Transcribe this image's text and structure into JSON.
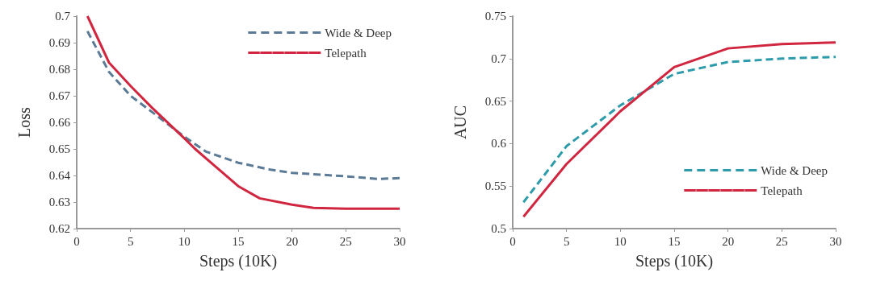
{
  "chart_data": [
    {
      "type": "line",
      "xlabel": "Steps (10K)",
      "ylabel": "Loss",
      "xlim": [
        0,
        30
      ],
      "xticks": [
        0,
        5,
        10,
        15,
        20,
        25,
        30
      ],
      "ylim": [
        0.62,
        0.7
      ],
      "yticks": [
        0.62,
        0.63,
        0.64,
        0.65,
        0.66,
        0.67,
        0.68,
        0.69,
        0.7
      ],
      "grid": false,
      "legend": "top right",
      "series": [
        {
          "name": "Wide & Deep",
          "color": "#5b7a96",
          "line_style": "dashed",
          "x": [
            1,
            3,
            5,
            7,
            10,
            12,
            15,
            18,
            20,
            25,
            28,
            30
          ],
          "values": [
            0.6943,
            0.679,
            0.67,
            0.6639,
            0.6546,
            0.649,
            0.6448,
            0.6422,
            0.641,
            0.6397,
            0.6387,
            0.639
          ]
        },
        {
          "name": "Telepath",
          "color": "#d0263f",
          "line_style": "solid",
          "x": [
            1,
            3,
            5,
            7,
            10,
            11,
            15,
            17,
            20,
            22,
            25,
            30
          ],
          "values": [
            0.7,
            0.6825,
            0.6737,
            0.6655,
            0.654,
            0.65,
            0.636,
            0.6314,
            0.629,
            0.6278,
            0.6275,
            0.6275
          ]
        }
      ]
    },
    {
      "type": "line",
      "xlabel": "Steps (10K)",
      "ylabel": "AUC",
      "xlim": [
        0,
        30
      ],
      "xticks": [
        0,
        5,
        10,
        15,
        20,
        25,
        30
      ],
      "ylim": [
        0.5,
        0.75
      ],
      "yticks": [
        0.5,
        0.55,
        0.6,
        0.65,
        0.7,
        0.75
      ],
      "grid": false,
      "legend": "bottom right",
      "series": [
        {
          "name": "Wide & Deep",
          "color": "#2e9bab",
          "line_style": "dashed",
          "x": [
            1,
            5,
            10,
            15,
            20,
            25,
            30
          ],
          "values": [
            0.531,
            0.597,
            0.645,
            0.682,
            0.696,
            0.7,
            0.702
          ]
        },
        {
          "name": "Telepath",
          "color": "#d0263f",
          "line_style": "solid",
          "x": [
            1,
            5,
            10,
            15,
            20,
            25,
            30
          ],
          "values": [
            0.514,
            0.576,
            0.638,
            0.69,
            0.712,
            0.717,
            0.719
          ]
        }
      ]
    }
  ]
}
